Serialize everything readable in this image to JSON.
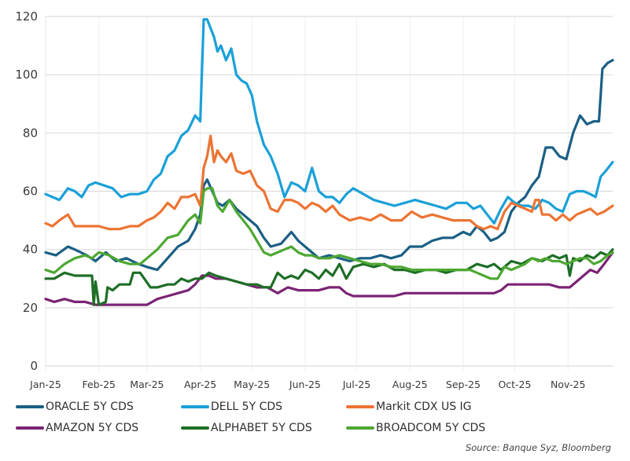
{
  "chart_data": {
    "type": "line",
    "title": "",
    "xlabel": "",
    "ylabel": "",
    "ylim": [
      0,
      120
    ],
    "yticks": [
      0,
      20,
      40,
      60,
      80,
      100,
      120
    ],
    "ytick_labels": [
      "0",
      "20",
      "40",
      "60",
      "80",
      "100",
      "120"
    ],
    "x_unit": "day of year 2025",
    "xlim": [
      1,
      331
    ],
    "xticks": [
      1,
      32,
      60,
      91,
      121,
      152,
      182,
      213,
      244,
      274,
      305
    ],
    "xtick_labels": [
      "Jan-25",
      "Feb-25",
      "Mar-25",
      "Apr-25",
      "May-25",
      "Jun-25",
      "Jul-25",
      "Aug-25",
      "Sep-25",
      "Oct-25",
      "Nov-25"
    ],
    "grid": true,
    "legend_position": "bottom",
    "source": "Source: Banque Syz, Bloomberg",
    "series": [
      {
        "name": "ORACLE 5Y CDS",
        "color": "#1b5f85",
        "x": [
          1,
          7,
          14,
          18,
          25,
          30,
          36,
          42,
          48,
          55,
          60,
          66,
          72,
          78,
          84,
          88,
          91,
          93,
          95,
          98,
          101,
          104,
          108,
          112,
          116,
          120,
          124,
          128,
          132,
          138,
          144,
          148,
          152,
          156,
          160,
          166,
          172,
          178,
          184,
          190,
          196,
          202,
          208,
          213,
          220,
          226,
          232,
          238,
          244,
          248,
          252,
          256,
          260,
          264,
          268,
          272,
          276,
          280,
          284,
          288,
          292,
          296,
          300,
          304,
          308,
          312,
          316,
          320,
          323,
          325,
          328,
          331
        ],
        "values": [
          39,
          38,
          41,
          40,
          38,
          36,
          39,
          36,
          37,
          35,
          34,
          33,
          37,
          41,
          43,
          47,
          52,
          62,
          64,
          60,
          56,
          55,
          57,
          54,
          52,
          50,
          48,
          44,
          41,
          42,
          46,
          43,
          41,
          39,
          37,
          38,
          37,
          36,
          37,
          37,
          38,
          37,
          38,
          41,
          41,
          43,
          44,
          44,
          46,
          45,
          48,
          46,
          43,
          44,
          46,
          53,
          56,
          58,
          62,
          65,
          75,
          75,
          72,
          71,
          80,
          86,
          83,
          84,
          84,
          102,
          104,
          105
        ]
      },
      {
        "name": "DELL 5Y CDS",
        "color": "#1aa0d8",
        "x": [
          1,
          5,
          9,
          14,
          18,
          22,
          26,
          30,
          35,
          40,
          45,
          50,
          55,
          60,
          64,
          68,
          72,
          76,
          80,
          84,
          88,
          91,
          93,
          95,
          97,
          99,
          101,
          103,
          106,
          109,
          112,
          115,
          118,
          121,
          124,
          128,
          132,
          136,
          140,
          144,
          148,
          152,
          156,
          160,
          164,
          168,
          172,
          176,
          180,
          186,
          192,
          198,
          204,
          210,
          216,
          222,
          228,
          234,
          240,
          246,
          250,
          254,
          258,
          262,
          266,
          270,
          274,
          278,
          282,
          286,
          290,
          294,
          298,
          302,
          306,
          310,
          314,
          318,
          321,
          324,
          327,
          331
        ],
        "values": [
          59,
          58,
          57,
          61,
          60,
          58,
          62,
          63,
          62,
          61,
          58,
          59,
          59,
          60,
          64,
          66,
          72,
          74,
          79,
          81,
          86,
          84,
          119,
          119,
          116,
          113,
          108,
          110,
          105,
          109,
          100,
          98,
          97,
          93,
          84,
          76,
          72,
          66,
          58,
          63,
          62,
          60,
          68,
          60,
          58,
          58,
          56,
          59,
          61,
          59,
          57,
          56,
          55,
          56,
          57,
          56,
          55,
          54,
          56,
          56,
          54,
          55,
          52,
          49,
          54,
          58,
          56,
          55,
          55,
          54,
          57,
          56,
          54,
          53,
          59,
          60,
          60,
          59,
          58,
          65,
          67,
          70
        ]
      },
      {
        "name": "Markit CDX US IG",
        "color": "#ec7433",
        "x": [
          1,
          5,
          9,
          14,
          18,
          22,
          26,
          32,
          38,
          44,
          50,
          55,
          60,
          64,
          68,
          72,
          76,
          80,
          84,
          88,
          91,
          93,
          95,
          97,
          99,
          101,
          103,
          106,
          109,
          112,
          116,
          120,
          124,
          128,
          132,
          136,
          140,
          144,
          148,
          152,
          156,
          160,
          164,
          168,
          172,
          178,
          184,
          190,
          196,
          202,
          208,
          214,
          220,
          226,
          232,
          238,
          244,
          248,
          252,
          256,
          260,
          264,
          268,
          272,
          276,
          280,
          284,
          286,
          288,
          290,
          294,
          298,
          302,
          306,
          310,
          314,
          318,
          322,
          326,
          331
        ],
        "values": [
          49,
          48,
          50,
          52,
          48,
          48,
          48,
          48,
          47,
          47,
          48,
          48,
          50,
          51,
          53,
          56,
          54,
          58,
          58,
          59,
          55,
          68,
          72,
          79,
          70,
          74,
          72,
          70,
          73,
          67,
          66,
          67,
          62,
          60,
          54,
          53,
          57,
          57,
          56,
          54,
          56,
          55,
          53,
          55,
          52,
          50,
          51,
          50,
          52,
          50,
          50,
          53,
          51,
          52,
          51,
          50,
          50,
          50,
          48,
          47,
          48,
          47,
          53,
          56,
          55,
          54,
          53,
          57,
          57,
          52,
          52,
          50,
          52,
          50,
          52,
          53,
          54,
          52,
          53,
          55
        ]
      },
      {
        "name": "AMAZON 5Y CDS",
        "color": "#7b2474",
        "x": [
          1,
          6,
          12,
          18,
          24,
          30,
          36,
          42,
          48,
          54,
          60,
          66,
          72,
          78,
          84,
          88,
          92,
          96,
          100,
          106,
          112,
          118,
          124,
          130,
          136,
          142,
          148,
          154,
          160,
          166,
          172,
          176,
          180,
          186,
          192,
          198,
          204,
          210,
          216,
          222,
          228,
          234,
          240,
          246,
          252,
          258,
          262,
          266,
          270,
          276,
          282,
          288,
          294,
          300,
          306,
          310,
          314,
          318,
          322,
          326,
          331
        ],
        "values": [
          23,
          22,
          23,
          22,
          22,
          21,
          21,
          21,
          21,
          21,
          21,
          23,
          24,
          25,
          26,
          28,
          31,
          31,
          30,
          30,
          29,
          28,
          27,
          27,
          25,
          27,
          26,
          26,
          26,
          27,
          27,
          25,
          24,
          24,
          24,
          24,
          24,
          25,
          25,
          25,
          25,
          25,
          25,
          25,
          25,
          25,
          25,
          26,
          28,
          28,
          28,
          28,
          28,
          27,
          27,
          29,
          31,
          33,
          32,
          35,
          39
        ]
      },
      {
        "name": "ALPHABET 5Y CDS",
        "color": "#1e6e26",
        "x": [
          1,
          6,
          12,
          18,
          24,
          28,
          29,
          30,
          32,
          36,
          37,
          40,
          44,
          50,
          52,
          56,
          62,
          66,
          72,
          76,
          80,
          84,
          88,
          92,
          96,
          100,
          106,
          112,
          118,
          124,
          128,
          132,
          136,
          140,
          144,
          148,
          152,
          156,
          160,
          164,
          168,
          172,
          176,
          180,
          186,
          192,
          198,
          204,
          210,
          216,
          222,
          228,
          234,
          240,
          246,
          252,
          258,
          262,
          266,
          272,
          278,
          284,
          290,
          296,
          300,
          304,
          306,
          308,
          312,
          316,
          320,
          324,
          328,
          331
        ],
        "values": [
          30,
          30,
          32,
          31,
          31,
          31,
          21,
          29,
          21,
          22,
          27,
          26,
          28,
          28,
          32,
          32,
          27,
          27,
          28,
          28,
          30,
          29,
          30,
          30,
          32,
          31,
          30,
          29,
          28,
          28,
          27,
          27,
          32,
          30,
          31,
          30,
          33,
          32,
          30,
          33,
          31,
          35,
          30,
          34,
          35,
          34,
          35,
          33,
          33,
          32,
          33,
          33,
          32,
          33,
          33,
          35,
          34,
          35,
          33,
          36,
          35,
          37,
          36,
          38,
          37,
          38,
          31,
          37,
          36,
          38,
          37,
          39,
          38,
          40
        ]
      },
      {
        "name": "BROADCOM 5Y CDS",
        "color": "#4da832",
        "x": [
          1,
          6,
          12,
          18,
          24,
          28,
          32,
          38,
          44,
          50,
          56,
          60,
          66,
          72,
          78,
          84,
          88,
          91,
          93,
          95,
          98,
          101,
          104,
          108,
          112,
          116,
          120,
          124,
          128,
          132,
          136,
          140,
          144,
          148,
          152,
          156,
          160,
          166,
          172,
          178,
          184,
          190,
          196,
          202,
          208,
          214,
          220,
          226,
          232,
          238,
          244,
          248,
          252,
          256,
          260,
          264,
          268,
          272,
          276,
          280,
          284,
          288,
          292,
          296,
          300,
          304,
          308,
          312,
          316,
          320,
          324,
          328,
          331
        ],
        "values": [
          33,
          32,
          35,
          37,
          38,
          37,
          39,
          38,
          36,
          35,
          35,
          37,
          40,
          44,
          45,
          50,
          52,
          49,
          60,
          61,
          61,
          55,
          53,
          57,
          53,
          50,
          47,
          43,
          39,
          38,
          39,
          40,
          41,
          39,
          38,
          38,
          37,
          37,
          38,
          37,
          36,
          35,
          35,
          34,
          34,
          33,
          33,
          33,
          33,
          33,
          33,
          33,
          32,
          31,
          30,
          30,
          34,
          33,
          34,
          35,
          37,
          36,
          37,
          36,
          36,
          35,
          36,
          37,
          37,
          35,
          36,
          38,
          39
        ]
      }
    ]
  }
}
